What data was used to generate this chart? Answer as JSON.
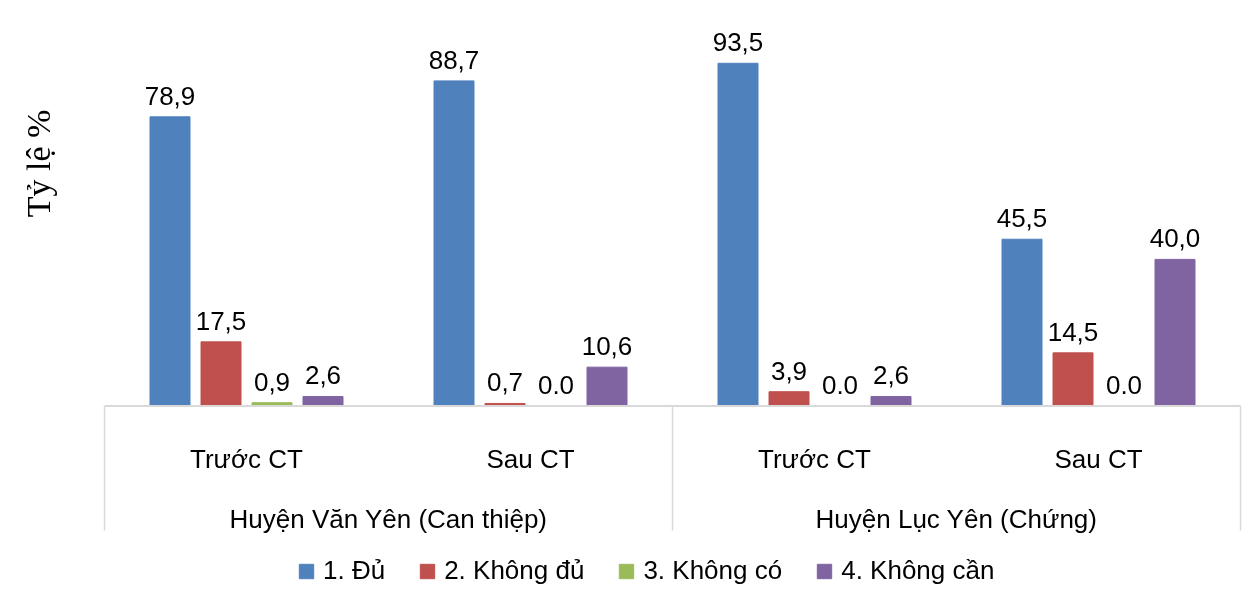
{
  "chart_data": {
    "type": "bar",
    "ylabel": "Tỷ lệ %",
    "categories": [
      "Trước CT",
      "Sau CT",
      "Trước CT",
      "Sau CT"
    ],
    "annotations": [
      "Huyện Văn Yên (Can thiệp)",
      "Huyện Lục Yên (Chứng)"
    ],
    "series": [
      {
        "name": "1. Đủ",
        "color": "#4f81bd",
        "values": [
          78.9,
          88.7,
          93.5,
          45.5
        ],
        "value_labels": [
          "78,9",
          "88,7",
          "93,5",
          "45,5"
        ]
      },
      {
        "name": "2. Không đủ",
        "color": "#c0504d",
        "values": [
          17.5,
          0.7,
          3.9,
          14.5
        ],
        "value_labels": [
          "17,5",
          "0,7",
          "3,9",
          "14,5"
        ]
      },
      {
        "name": "3. Không có",
        "color": "#9bbb59",
        "values": [
          0.9,
          0.0,
          0.0,
          0.0
        ],
        "value_labels": [
          "0,9",
          "0.0",
          "0.0",
          "0.0"
        ]
      },
      {
        "name": "4. Không cần",
        "color": "#8064a2",
        "values": [
          2.6,
          10.6,
          2.6,
          40.0
        ],
        "value_labels": [
          "2,6",
          "10,6",
          "2,6",
          "40,0"
        ]
      }
    ],
    "legend": "bottom"
  }
}
